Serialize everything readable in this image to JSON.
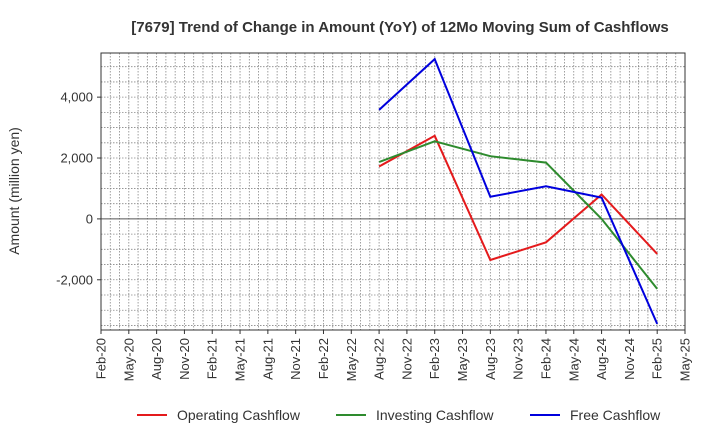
{
  "chart_data": {
    "type": "line",
    "title": "[7679]  Trend of Change in Amount (YoY) of 12Mo Moving Sum of Cashflows",
    "xlabel": "",
    "ylabel": "Amount (million yen)",
    "categories": [
      "Feb-20",
      "May-20",
      "Aug-20",
      "Nov-20",
      "Feb-21",
      "May-21",
      "Aug-21",
      "Nov-21",
      "Feb-22",
      "May-22",
      "Aug-22",
      "Nov-22",
      "Feb-23",
      "May-23",
      "Aug-23",
      "Nov-23",
      "Feb-24",
      "May-24",
      "Aug-24",
      "Nov-24",
      "Feb-25",
      "May-25"
    ],
    "ylim": [
      -3650,
      5450
    ],
    "yticks": [
      -2000,
      0,
      2000,
      4000
    ],
    "ytick_labels": [
      "-2,000",
      "0",
      "2,000",
      "4,000"
    ],
    "grid": true,
    "legend_position": "bottom",
    "series": [
      {
        "name": "Operating Cashflow",
        "color": "#e41a1c",
        "values": [
          null,
          null,
          null,
          null,
          null,
          null,
          null,
          null,
          null,
          null,
          1720,
          null,
          2730,
          null,
          -1350,
          null,
          -770,
          null,
          800,
          null,
          -1150,
          null
        ]
      },
      {
        "name": "Investing Cashflow",
        "color": "#2e8b2e",
        "values": [
          null,
          null,
          null,
          null,
          null,
          null,
          null,
          null,
          null,
          null,
          1870,
          null,
          2550,
          null,
          2060,
          null,
          1850,
          null,
          0,
          null,
          -2300,
          null
        ]
      },
      {
        "name": "Free Cashflow",
        "color": "#0000dd",
        "values": [
          null,
          null,
          null,
          null,
          null,
          null,
          null,
          null,
          null,
          null,
          3580,
          null,
          5250,
          null,
          730,
          null,
          1070,
          null,
          700,
          null,
          -3450,
          null
        ]
      }
    ]
  }
}
